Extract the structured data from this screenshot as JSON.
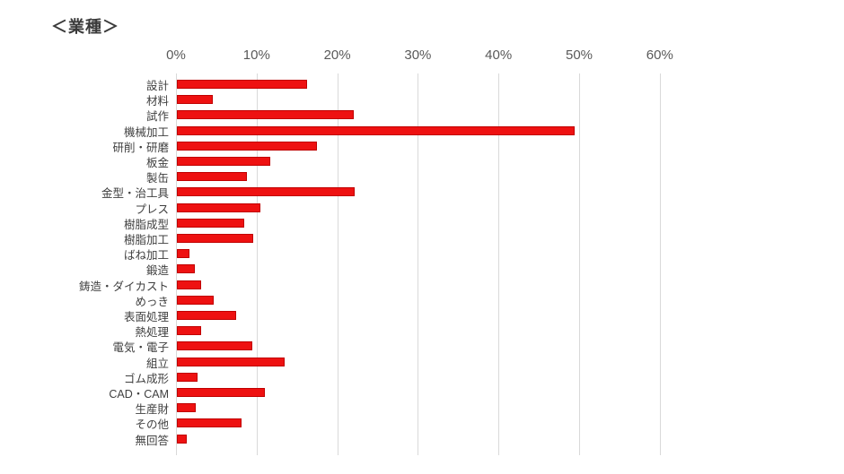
{
  "page": {
    "title": "＜業種＞"
  },
  "colors": {
    "background": "#ffffff",
    "bar_fill": "#ee1111",
    "bar_border": "#c00000",
    "gridline": "#d9d9d9",
    "axis_text": "#595959",
    "category_text": "#404040",
    "title_text": "#3a3a3a"
  },
  "chart_data": {
    "type": "bar",
    "orientation": "horizontal",
    "title": "＜業種＞",
    "xlabel": "",
    "ylabel": "",
    "unit": "%",
    "xlim": [
      0,
      61
    ],
    "grid": true,
    "grid_interval": 10,
    "legend": "none",
    "x_ticks": [
      "0%",
      "10%",
      "20%",
      "30%",
      "40%",
      "50%",
      "60%"
    ],
    "x_tick_values": [
      0,
      10,
      20,
      30,
      40,
      50,
      60
    ],
    "categories": [
      "設計",
      "材料",
      "試作",
      "機械加工",
      "研削・研磨",
      "板金",
      "製缶",
      "金型・治工具",
      "プレス",
      "樹脂成型",
      "樹脂加工",
      "ばね加工",
      "鍛造",
      "鋳造・ダイカスト",
      "めっき",
      "表面処理",
      "熱処理",
      "電気・電子",
      "組立",
      "ゴム成形",
      "CAD・CAM",
      "生産財",
      "その他",
      "無回答"
    ],
    "values": [
      16.1,
      4.4,
      21.9,
      49.3,
      17.4,
      11.6,
      8.7,
      22.1,
      10.4,
      8.3,
      9.5,
      1.6,
      2.2,
      3.0,
      4.6,
      7.3,
      3.0,
      9.4,
      13.4,
      2.6,
      10.9,
      2.3,
      8.0,
      1.2
    ]
  }
}
